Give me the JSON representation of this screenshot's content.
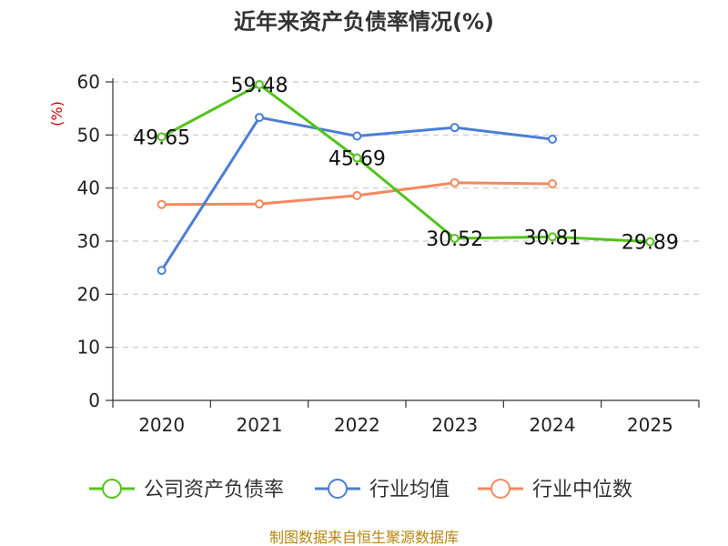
{
  "chart_data": {
    "type": "line",
    "title": "近年来资产负债率情况(%)",
    "ylabel": "(%)",
    "xlabel": "",
    "categories": [
      "2020",
      "2021",
      "2022",
      "2023",
      "2024",
      "2025"
    ],
    "ylim": [
      0,
      60
    ],
    "yticks": [
      "0",
      "10",
      "20",
      "30",
      "40",
      "50",
      "60"
    ],
    "grid": true,
    "legend_position": "bottom",
    "series": [
      {
        "name": "公司资产负债率",
        "color": "#52c41a",
        "values": [
          49.65,
          59.48,
          45.69,
          30.52,
          30.81,
          29.89
        ],
        "labels": [
          "49.65",
          "59.48",
          "45.69",
          "30.52",
          "30.81",
          "29.89"
        ]
      },
      {
        "name": "行业均值",
        "color": "#4a7fd6",
        "values": [
          24.5,
          53.3,
          49.8,
          51.4,
          49.2,
          null
        ]
      },
      {
        "name": "行业中位数",
        "color": "#f4895f",
        "values": [
          36.9,
          37.0,
          38.6,
          41.0,
          40.8,
          null
        ]
      }
    ]
  },
  "footer": {
    "source": "制图数据来自恒生聚源数据库"
  }
}
